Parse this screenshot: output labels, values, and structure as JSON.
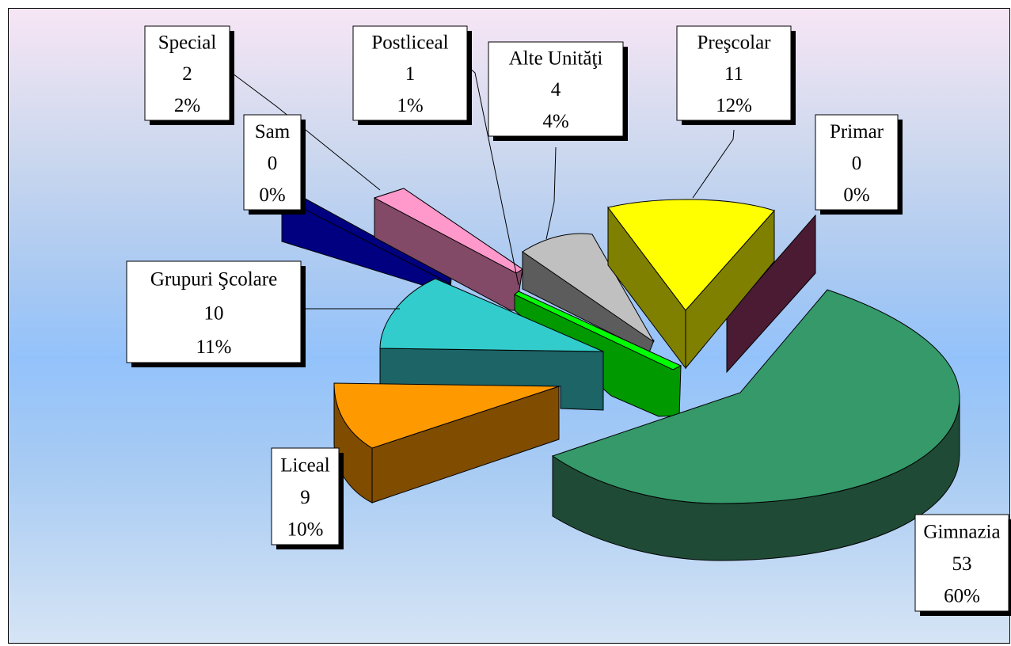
{
  "chart_data": {
    "type": "pie",
    "variant": "3d-exploded",
    "title": "",
    "slices": [
      {
        "key": "gimnazia",
        "name": "Gimnazia",
        "value": 53,
        "percent": "60%",
        "top": "#35996a",
        "side": "#1f4b36"
      },
      {
        "key": "prescolar",
        "name": "Preşcolar",
        "value": 11,
        "percent": "12%",
        "top": "#ffff00",
        "side": "#808000"
      },
      {
        "key": "primar",
        "name": "Primar",
        "value": 0,
        "percent": "0%",
        "top": "#7b2c4c",
        "side": "#4a1b33"
      },
      {
        "key": "alte",
        "name": "Alte Unităţi",
        "value": 4,
        "percent": "4%",
        "top": "#c0c0c0",
        "side": "#5c5c5c"
      },
      {
        "key": "postliceal",
        "name": "Postliceal",
        "value": 1,
        "percent": "1%",
        "top": "#00ff00",
        "side": "#009900"
      },
      {
        "key": "special",
        "name": "Special",
        "value": 2,
        "percent": "2%",
        "top": "#ff99cc",
        "side": "#824a66"
      },
      {
        "key": "sam",
        "name": "Sam",
        "value": 0,
        "percent": "0%",
        "top": "#000080",
        "side": "#000080"
      },
      {
        "key": "grupuri",
        "name": "Grupuri Şcolare",
        "value": 10,
        "percent": "11%",
        "top": "#33cccc",
        "side": "#1c6466"
      },
      {
        "key": "liceal",
        "name": "Liceal",
        "value": 9,
        "percent": "10%",
        "top": "#ff9900",
        "side": "#7f4c00"
      }
    ],
    "legend": "none",
    "data_labels": "name, value, percent"
  }
}
